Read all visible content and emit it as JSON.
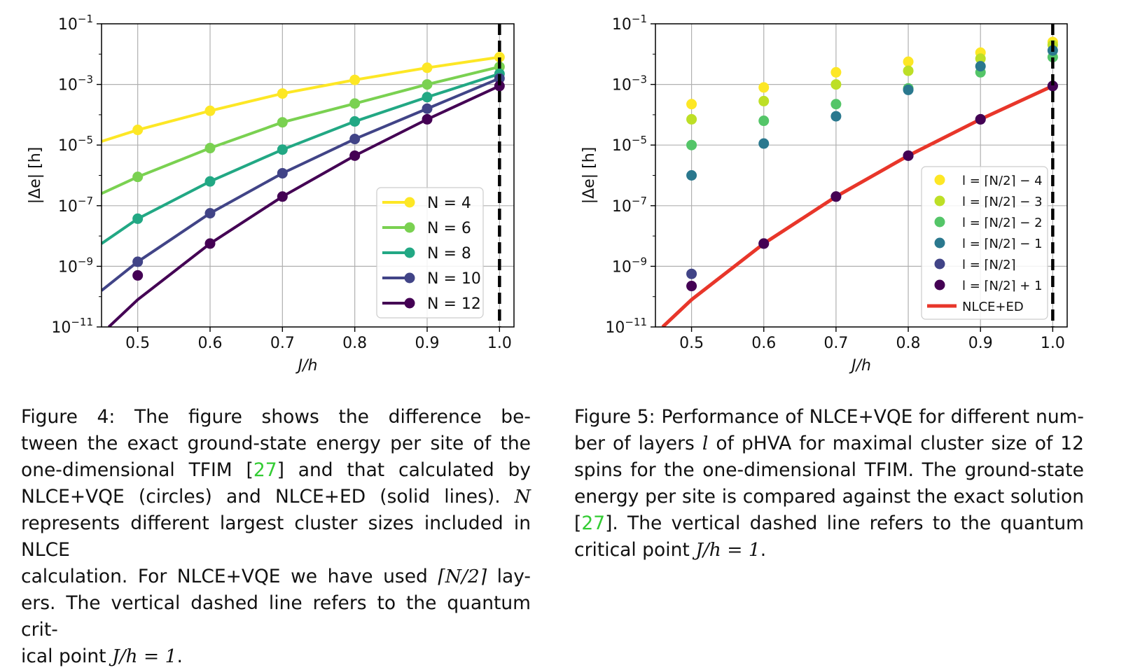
{
  "figure4": {
    "chart_data": {
      "type": "line",
      "xlabel": "J/h",
      "ylabel": "|Δe| [h]",
      "xlim": [
        0.45,
        1.02
      ],
      "ylim_log10": [
        -11,
        -1
      ],
      "yscale": "log",
      "grid": true,
      "legend_position": "lower-right",
      "vline_x": 1.0,
      "x_ticks": [
        "0.5",
        "0.6",
        "0.7",
        "0.8",
        "0.9",
        "1.0"
      ],
      "y_ticks": [
        {
          "base": "10",
          "exp": "−1"
        },
        {
          "base": "10",
          "exp": "−3"
        },
        {
          "base": "10",
          "exp": "−5"
        },
        {
          "base": "10",
          "exp": "−7"
        },
        {
          "base": "10",
          "exp": "−9"
        },
        {
          "base": "10",
          "exp": "−11"
        }
      ],
      "series": [
        {
          "name": "N = 4",
          "color": "#fde725",
          "line_x": [
            0.45,
            0.5,
            0.6,
            0.7,
            0.8,
            0.9,
            1.0
          ],
          "line_log10": [
            -4.88,
            -4.5,
            -3.87,
            -3.3,
            -2.85,
            -2.45,
            -2.1
          ],
          "points_x": [
            0.5,
            0.6,
            0.7,
            0.8,
            0.9,
            1.0
          ],
          "points_log10": [
            -4.5,
            -3.87,
            -3.3,
            -2.85,
            -2.45,
            -2.1
          ]
        },
        {
          "name": "N = 6",
          "color": "#7ad151",
          "line_x": [
            0.45,
            0.5,
            0.6,
            0.7,
            0.8,
            0.9,
            1.0
          ],
          "line_log10": [
            -6.6,
            -6.05,
            -5.1,
            -4.25,
            -3.63,
            -3.0,
            -2.42
          ],
          "points_x": [
            0.5,
            0.6,
            0.7,
            0.8,
            0.9,
            1.0
          ],
          "points_log10": [
            -6.05,
            -5.1,
            -4.25,
            -3.63,
            -3.0,
            -2.42
          ]
        },
        {
          "name": "N = 8",
          "color": "#22a884",
          "line_x": [
            0.45,
            0.5,
            0.6,
            0.7,
            0.8,
            0.9,
            1.0
          ],
          "line_log10": [
            -8.25,
            -7.43,
            -6.2,
            -5.15,
            -4.22,
            -3.42,
            -2.65
          ],
          "points_x": [
            0.5,
            0.6,
            0.7,
            0.8,
            0.9,
            1.0
          ],
          "points_log10": [
            -7.43,
            -6.2,
            -5.15,
            -4.22,
            -3.42,
            -2.65
          ]
        },
        {
          "name": "N = 10",
          "color": "#414487",
          "line_x": [
            0.45,
            0.5,
            0.6,
            0.7,
            0.8,
            0.9,
            1.0
          ],
          "line_log10": [
            -9.8,
            -8.85,
            -7.25,
            -5.93,
            -4.8,
            -3.8,
            -2.8
          ],
          "points_x": [
            0.5,
            0.6,
            0.7,
            0.8,
            0.9,
            1.0
          ],
          "points_log10": [
            -8.85,
            -7.25,
            -5.93,
            -4.8,
            -3.8,
            -2.8
          ]
        },
        {
          "name": "N = 12",
          "color": "#440154",
          "line_x": [
            0.46,
            0.5,
            0.6,
            0.7,
            0.8,
            0.9,
            1.0
          ],
          "line_log10": [
            -11.0,
            -10.1,
            -8.25,
            -6.7,
            -5.35,
            -4.15,
            -3.05
          ],
          "points_x": [
            0.5,
            0.6,
            0.7,
            0.8,
            0.9,
            1.0
          ],
          "points_log10": [
            -9.3,
            -8.25,
            -6.7,
            -5.35,
            -4.15,
            -3.05
          ]
        }
      ]
    }
  },
  "figure5": {
    "chart_data": {
      "type": "scatter",
      "xlabel": "J/h",
      "ylabel": "|Δe| [h]",
      "xlim": [
        0.45,
        1.02
      ],
      "ylim_log10": [
        -11,
        -1
      ],
      "yscale": "log",
      "grid": true,
      "legend_position": "lower-right",
      "vline_x": 1.0,
      "x_ticks": [
        "0.5",
        "0.6",
        "0.7",
        "0.8",
        "0.9",
        "1.0"
      ],
      "y_ticks": [
        {
          "base": "10",
          "exp": "−1"
        },
        {
          "base": "10",
          "exp": "−3"
        },
        {
          "base": "10",
          "exp": "−5"
        },
        {
          "base": "10",
          "exp": "−7"
        },
        {
          "base": "10",
          "exp": "−9"
        },
        {
          "base": "10",
          "exp": "−11"
        }
      ],
      "x": [
        0.5,
        0.6,
        0.7,
        0.8,
        0.9,
        1.0
      ],
      "series": [
        {
          "name": "l = ⌈N/2⌉ − 4",
          "color": "#fde725",
          "values_log10": [
            -3.65,
            -3.1,
            -2.6,
            -2.25,
            -1.95,
            -1.6
          ]
        },
        {
          "name": "l = ⌈N/2⌉ − 3",
          "color": "#bddf26",
          "values_log10": [
            -4.15,
            -3.55,
            -3.0,
            -2.55,
            -2.15,
            -1.7
          ]
        },
        {
          "name": "l = ⌈N/2⌉ − 2",
          "color": "#54c568",
          "values_log10": [
            -5.0,
            -4.2,
            -3.65,
            -3.13,
            -2.6,
            -2.1
          ]
        },
        {
          "name": "l = ⌈N/2⌉ − 1",
          "color": "#2a788e",
          "values_log10": [
            -6.0,
            -4.95,
            -4.05,
            -3.18,
            -2.4,
            -1.88
          ]
        },
        {
          "name": "l = ⌈N/2⌉",
          "color": "#414487",
          "values_log10": [
            -9.25,
            -8.25,
            -6.7,
            -5.35,
            -4.15,
            -3.05
          ]
        },
        {
          "name": "l = ⌈N/2⌉ + 1",
          "color": "#440154",
          "values_log10": [
            -9.65,
            -8.25,
            -6.7,
            -5.35,
            -4.15,
            -3.05
          ]
        }
      ],
      "reference_line": {
        "name": "NLCE+ED",
        "color": "#e8362a",
        "x": [
          0.46,
          0.5,
          0.6,
          0.7,
          0.8,
          0.9,
          1.0
        ],
        "log10": [
          -11.0,
          -10.1,
          -8.25,
          -6.7,
          -5.35,
          -4.15,
          -3.05
        ]
      }
    }
  },
  "captions": {
    "fig4_label": "Figure 4:",
    "fig4_l1": "The figure shows the difference be-",
    "fig4_l2": "tween the exact ground-state energy per site of the",
    "fig4_l3a": "one-dimensional TFIM [",
    "fig4_ref": "27",
    "fig4_l3b": "] and that calculated by",
    "fig4_l4a": "NLCE+VQE (circles) and NLCE+ED (solid lines).",
    "fig4_l4_var": "N",
    "fig4_l5": "represents different largest cluster sizes included in NLCE",
    "fig4_l6a": "calculation. For NLCE+VQE we have used",
    "fig4_l6_math": "⌈N/2⌉",
    "fig4_l6b": "lay-",
    "fig4_l7": "ers. The vertical dashed line refers to the quantum crit-",
    "fig4_l8a": "ical point",
    "fig4_l8_math": "J/h = 1",
    "fig4_l8b": ".",
    "fig5_l1": "Figure 5: Performance of NLCE+VQE for different num-",
    "fig5_l2a": "ber of layers",
    "fig5_l2_var": "l",
    "fig5_l2b": "of pHVA for maximal cluster size of 12",
    "fig5_l3": "spins for the one-dimensional TFIM. The ground-state",
    "fig5_l4": "energy per site is compared against the exact solution",
    "fig5_l5a": "[",
    "fig5_ref": "27",
    "fig5_l5b": "]. The vertical dashed line refers to the quantum",
    "fig5_l6a": "critical point",
    "fig5_l6_math": "J/h = 1",
    "fig5_l6b": "."
  }
}
